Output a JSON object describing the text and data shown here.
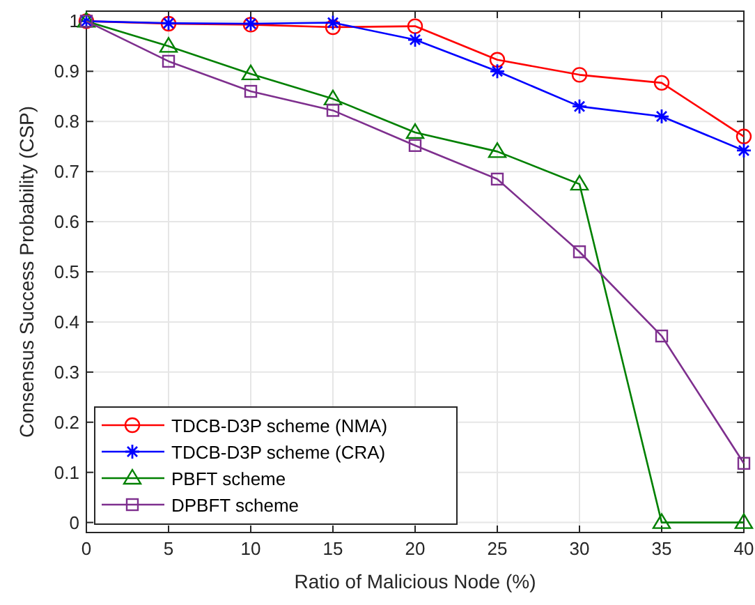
{
  "chart_data": {
    "type": "line",
    "xlabel": "Ratio of Malicious Node (%)",
    "ylabel": "Consensus Success Probability (CSP)",
    "x": [
      0,
      5,
      10,
      15,
      20,
      25,
      30,
      35,
      40
    ],
    "xlim": [
      0,
      40
    ],
    "xticks": [
      0,
      5,
      10,
      15,
      20,
      25,
      30,
      35,
      40
    ],
    "ylim": [
      -0.02,
      1.02
    ],
    "yticks": [
      0,
      0.1,
      0.2,
      0.3,
      0.4,
      0.5,
      0.6,
      0.7,
      0.8,
      0.9,
      1
    ],
    "grid": true,
    "legend": "bottom left",
    "series": [
      {
        "name": "TDCB-D3P scheme (NMA)",
        "color": "#ff0000",
        "marker": "circle",
        "values": [
          1,
          0.995,
          0.993,
          0.988,
          0.99,
          0.923,
          0.893,
          0.877,
          0.77
        ]
      },
      {
        "name": "TDCB-D3P scheme (CRA)",
        "color": "#0000ff",
        "marker": "cross",
        "values": [
          1,
          0.996,
          0.995,
          0.997,
          0.963,
          0.9,
          0.83,
          0.81,
          0.742
        ]
      },
      {
        "name": "PBFT scheme",
        "color": "#008000",
        "marker": "triangle",
        "values": [
          1,
          0.95,
          0.895,
          0.845,
          0.778,
          0.74,
          0.675,
          0,
          0
        ]
      },
      {
        "name": "DPBFT scheme",
        "color": "#7e2f8e",
        "marker": "square",
        "values": [
          1,
          0.92,
          0.86,
          0.822,
          0.752,
          0.685,
          0.54,
          0.372,
          0.118
        ]
      }
    ]
  }
}
